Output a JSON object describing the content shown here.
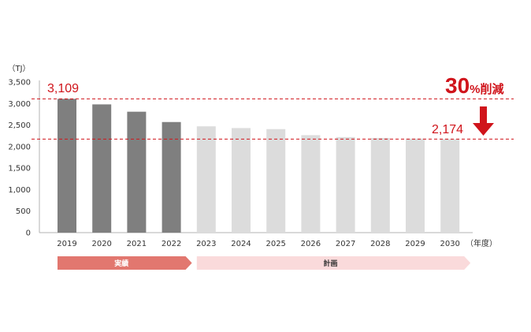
{
  "chart_data": {
    "type": "bar",
    "unit_label": "（TJ）",
    "x_unit_label": "（年度）",
    "categories": [
      "2019",
      "2020",
      "2021",
      "2022",
      "2023",
      "2024",
      "2025",
      "2026",
      "2027",
      "2028",
      "2029",
      "2030"
    ],
    "series": [
      {
        "values": [
          3109,
          2980,
          2810,
          2570,
          2470,
          2430,
          2405,
          2265,
          2220,
          2200,
          2185,
          2174
        ],
        "bar_status": [
          "actual",
          "actual",
          "actual",
          "actual",
          "plan",
          "plan",
          "plan",
          "plan",
          "plan",
          "plan",
          "plan",
          "plan"
        ]
      }
    ],
    "ylim": [
      0,
      3500
    ],
    "yticks": [
      0,
      500,
      1000,
      1500,
      2000,
      2500,
      3000,
      3500
    ],
    "ytick_labels": [
      "0",
      "500",
      "1,000",
      "1,500",
      "2,000",
      "2,500",
      "3,000",
      "3,500"
    ],
    "grid": false,
    "reference_lines": [
      {
        "value": 3109,
        "label": "3,109",
        "style": "dashed"
      },
      {
        "value": 2174,
        "label": "2,174",
        "style": "dashed"
      }
    ],
    "reduction_annotation": {
      "big": "30",
      "small": "%削減"
    },
    "phase_bands": [
      {
        "label": "実績",
        "from": "2019",
        "to": "2022",
        "color": "#e2776f"
      },
      {
        "label": "計画",
        "from": "2023",
        "to": "2030",
        "color": "#fadadb"
      }
    ],
    "colors": {
      "actual_bar": "#7f7f7f",
      "plan_bar": "#dcdcdc",
      "accent_red": "#d0141b",
      "dashed_line": "#d0141b",
      "axis": "#b3b3b3"
    }
  }
}
